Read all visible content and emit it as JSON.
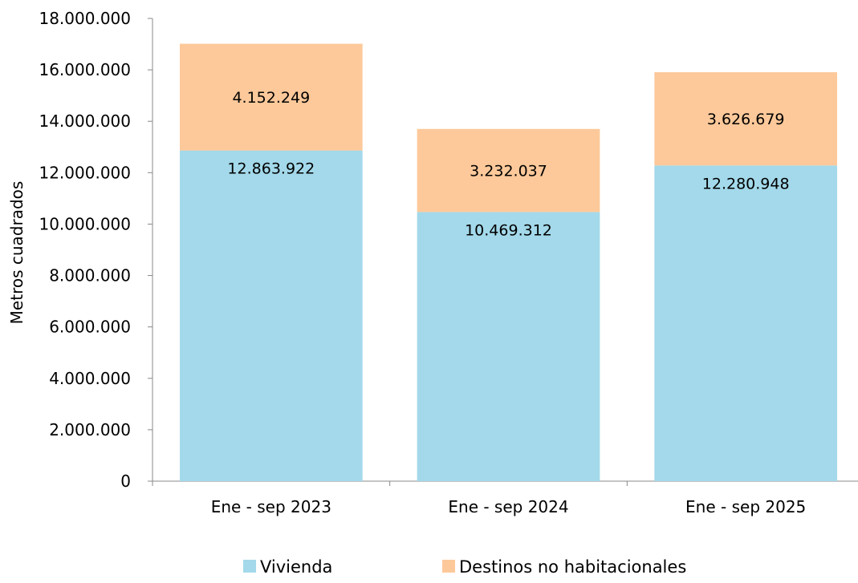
{
  "chart_data": {
    "type": "bar",
    "stacked": true,
    "categories": [
      "Ene - sep 2023",
      "Ene - sep 2024",
      "Ene - sep 2025"
    ],
    "series": [
      {
        "name": "Vivienda",
        "values": [
          12863922,
          10469312,
          12280948
        ],
        "color": "#a3d9ea"
      },
      {
        "name": "Destinos no habitacionales",
        "values": [
          4152249,
          3232037,
          3626679
        ],
        "color": "#fdc99a"
      }
    ],
    "data_labels": [
      [
        "12.863.922",
        "10.469.312",
        "12.280.948"
      ],
      [
        "4.152.249",
        "3.232.037",
        "3.626.679"
      ]
    ],
    "ylabel": "Metros cuadrados",
    "xlabel": "",
    "ylim": [
      0,
      18000000
    ],
    "yticks": [
      0,
      2000000,
      4000000,
      6000000,
      8000000,
      10000000,
      12000000,
      14000000,
      16000000,
      18000000
    ],
    "ytick_labels": [
      "0",
      "2.000.000",
      "4.000.000",
      "6.000.000",
      "8.000.000",
      "10.000.000",
      "12.000.000",
      "14.000.000",
      "16.000.000",
      "18.000.000"
    ],
    "grid": false,
    "legend_position": "bottom"
  }
}
